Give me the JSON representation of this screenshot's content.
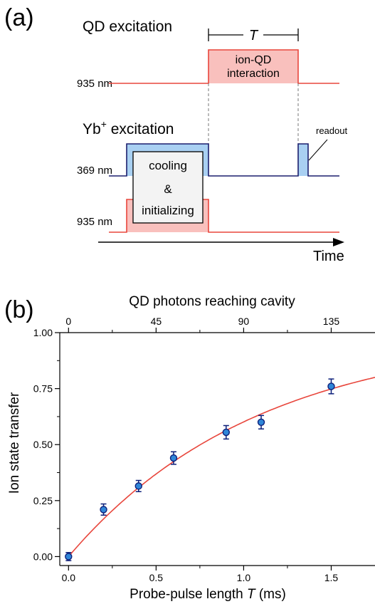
{
  "colors": {
    "red_line": "#e8463c",
    "red_fill": "#f9c0bd",
    "blue_fill": "#a9d0f2",
    "navy_line": "#1c1f6e",
    "marker_fill": "#2f86d8",
    "marker_edge": "#0d1f7a",
    "fit_line": "#e8463c"
  },
  "panel_a": {
    "label": "(a)",
    "qd_excitation": "QD excitation",
    "yb_excitation_base": "Yb",
    "yb_excitation_sup": "+",
    "yb_excitation_rest": " excitation",
    "wl_935_top": "935 nm",
    "wl_369": "369 nm",
    "wl_935_bottom": "935 nm",
    "period_label": "T",
    "interaction_line1": "ion-QD",
    "interaction_line2": "interaction",
    "cooling": "cooling",
    "ampersand": "&",
    "initializing": "initializing",
    "readout": "readout",
    "time_axis": "Time"
  },
  "panel_b": {
    "label": "(b)"
  },
  "chart_data": {
    "type": "scatter",
    "title": "",
    "xlabel": "Probe-pulse length T (ms)",
    "xlabel_parts": [
      "Probe-pulse length ",
      "T",
      " (ms)"
    ],
    "ylabel": "Ion state transfer",
    "top_axis_label": "QD photons reaching cavity",
    "xlim": [
      -0.05,
      1.75
    ],
    "ylim": [
      -0.04,
      1.0
    ],
    "x_ticks": [
      0.0,
      0.5,
      1.0,
      1.5
    ],
    "x_tick_labels": [
      "0.0",
      "0.5",
      "1.0",
      "1.5"
    ],
    "y_ticks": [
      0.0,
      0.25,
      0.5,
      0.75,
      1.0
    ],
    "y_tick_labels": [
      "0.00",
      "0.25",
      "0.50",
      "0.75",
      "1.00"
    ],
    "top_ticks": [
      0,
      45,
      90,
      135
    ],
    "top_tick_labels": [
      "0",
      "45",
      "90",
      "135"
    ],
    "top_photons_per_ms": 90,
    "series": [
      {
        "x": [
          0.0,
          0.2,
          0.4,
          0.6,
          0.9,
          1.1,
          1.5
        ],
        "y": [
          0.0,
          0.21,
          0.315,
          0.44,
          0.555,
          0.6,
          0.76
        ],
        "yerr": [
          0.018,
          0.025,
          0.025,
          0.028,
          0.03,
          0.03,
          0.033
        ]
      }
    ],
    "fit": {
      "type": "line",
      "saturation": 1.0,
      "rate": 0.92
    },
    "grid": false
  }
}
